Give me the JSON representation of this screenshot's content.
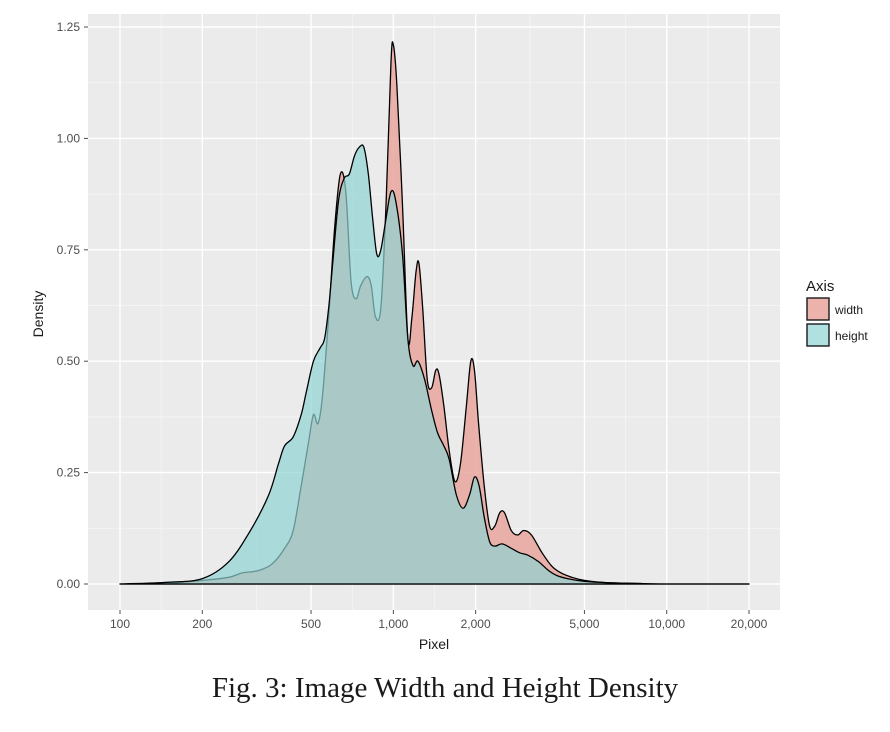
{
  "chart_data": {
    "type": "area",
    "title": "",
    "xlabel": "Pixel",
    "ylabel": "Density",
    "x_scale": "log10",
    "xlim": [
      100,
      20000
    ],
    "ylim": [
      0,
      1.25
    ],
    "x_ticks": [
      100,
      200,
      500,
      1000,
      2000,
      5000,
      10000,
      20000
    ],
    "x_tick_labels": [
      "100",
      "200",
      "500",
      "1,000",
      "2,000",
      "5,000",
      "10,000",
      "20,000"
    ],
    "y_ticks": [
      0,
      0.25,
      0.5,
      0.75,
      1.0,
      1.25
    ],
    "y_tick_labels": [
      "0.00",
      "0.25",
      "0.50",
      "0.75",
      "1.00",
      "1.25"
    ],
    "grid": true,
    "legend": {
      "title": "Axis",
      "position": "right"
    },
    "series": [
      {
        "name": "width",
        "color": "#e8a69c",
        "points": [
          [
            100,
            0
          ],
          [
            150,
            0.002
          ],
          [
            200,
            0.008
          ],
          [
            250,
            0.015
          ],
          [
            280,
            0.025
          ],
          [
            320,
            0.03
          ],
          [
            360,
            0.045
          ],
          [
            400,
            0.08
          ],
          [
            430,
            0.12
          ],
          [
            460,
            0.22
          ],
          [
            490,
            0.32
          ],
          [
            510,
            0.38
          ],
          [
            530,
            0.36
          ],
          [
            550,
            0.42
          ],
          [
            580,
            0.6
          ],
          [
            610,
            0.8
          ],
          [
            640,
            0.92
          ],
          [
            670,
            0.88
          ],
          [
            700,
            0.68
          ],
          [
            730,
            0.64
          ],
          [
            760,
            0.67
          ],
          [
            800,
            0.69
          ],
          [
            830,
            0.67
          ],
          [
            860,
            0.6
          ],
          [
            900,
            0.62
          ],
          [
            940,
            0.85
          ],
          [
            980,
            1.17
          ],
          [
            1000,
            1.21
          ],
          [
            1030,
            1.12
          ],
          [
            1080,
            0.85
          ],
          [
            1130,
            0.55
          ],
          [
            1170,
            0.6
          ],
          [
            1210,
            0.7
          ],
          [
            1240,
            0.72
          ],
          [
            1280,
            0.62
          ],
          [
            1330,
            0.46
          ],
          [
            1380,
            0.44
          ],
          [
            1430,
            0.48
          ],
          [
            1470,
            0.47
          ],
          [
            1530,
            0.4
          ],
          [
            1600,
            0.3
          ],
          [
            1680,
            0.23
          ],
          [
            1760,
            0.27
          ],
          [
            1850,
            0.4
          ],
          [
            1920,
            0.5
          ],
          [
            1980,
            0.48
          ],
          [
            2050,
            0.36
          ],
          [
            2150,
            0.22
          ],
          [
            2250,
            0.13
          ],
          [
            2350,
            0.13
          ],
          [
            2450,
            0.16
          ],
          [
            2550,
            0.16
          ],
          [
            2700,
            0.12
          ],
          [
            2850,
            0.11
          ],
          [
            3000,
            0.12
          ],
          [
            3200,
            0.11
          ],
          [
            3500,
            0.07
          ],
          [
            3800,
            0.04
          ],
          [
            4100,
            0.025
          ],
          [
            4500,
            0.015
          ],
          [
            5000,
            0.008
          ],
          [
            6000,
            0.003
          ],
          [
            8000,
            0.001
          ],
          [
            10000,
            0
          ],
          [
            20000,
            0
          ]
        ]
      },
      {
        "name": "height",
        "color": "#8fd3d3",
        "points": [
          [
            100,
            0
          ],
          [
            150,
            0.004
          ],
          [
            200,
            0.012
          ],
          [
            250,
            0.05
          ],
          [
            300,
            0.12
          ],
          [
            350,
            0.2
          ],
          [
            380,
            0.27
          ],
          [
            400,
            0.31
          ],
          [
            430,
            0.33
          ],
          [
            460,
            0.38
          ],
          [
            480,
            0.43
          ],
          [
            510,
            0.5
          ],
          [
            540,
            0.53
          ],
          [
            560,
            0.55
          ],
          [
            580,
            0.62
          ],
          [
            600,
            0.72
          ],
          [
            630,
            0.86
          ],
          [
            660,
            0.91
          ],
          [
            690,
            0.92
          ],
          [
            720,
            0.96
          ],
          [
            750,
            0.98
          ],
          [
            780,
            0.98
          ],
          [
            810,
            0.92
          ],
          [
            840,
            0.82
          ],
          [
            870,
            0.74
          ],
          [
            900,
            0.75
          ],
          [
            940,
            0.82
          ],
          [
            980,
            0.88
          ],
          [
            1020,
            0.86
          ],
          [
            1080,
            0.74
          ],
          [
            1130,
            0.55
          ],
          [
            1180,
            0.49
          ],
          [
            1230,
            0.5
          ],
          [
            1300,
            0.46
          ],
          [
            1380,
            0.39
          ],
          [
            1450,
            0.34
          ],
          [
            1530,
            0.31
          ],
          [
            1600,
            0.28
          ],
          [
            1700,
            0.2
          ],
          [
            1800,
            0.17
          ],
          [
            1900,
            0.2
          ],
          [
            1980,
            0.24
          ],
          [
            2060,
            0.22
          ],
          [
            2150,
            0.15
          ],
          [
            2250,
            0.095
          ],
          [
            2350,
            0.085
          ],
          [
            2500,
            0.09
          ],
          [
            2700,
            0.08
          ],
          [
            2900,
            0.07
          ],
          [
            3100,
            0.065
          ],
          [
            3400,
            0.05
          ],
          [
            3700,
            0.03
          ],
          [
            4000,
            0.018
          ],
          [
            4500,
            0.01
          ],
          [
            5000,
            0.006
          ],
          [
            6000,
            0.003
          ],
          [
            8000,
            0.001
          ],
          [
            10000,
            0
          ],
          [
            20000,
            0
          ]
        ]
      }
    ]
  },
  "caption": "Fig. 3: Image Width and Height Density"
}
